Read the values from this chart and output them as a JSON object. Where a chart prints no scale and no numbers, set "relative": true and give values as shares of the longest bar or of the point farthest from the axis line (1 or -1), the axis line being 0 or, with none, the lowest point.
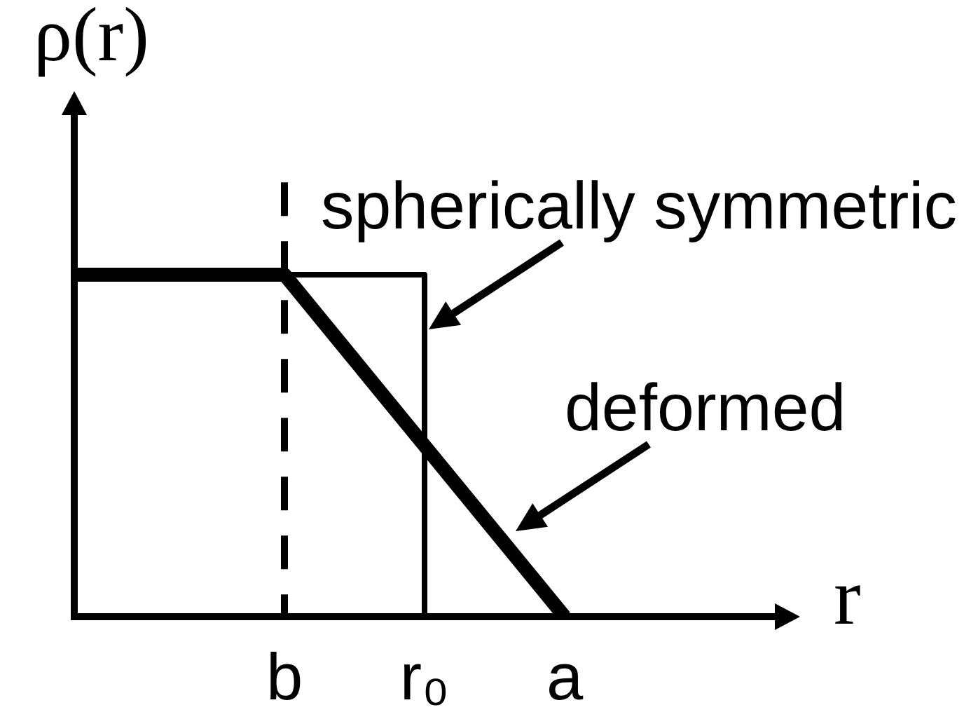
{
  "chart_data": {
    "type": "line",
    "ylabel": "ρ(r)",
    "xlabel": "r",
    "categories": [
      null,
      null,
      null,
      "b",
      null,
      "r₀",
      null,
      "a",
      null,
      null,
      null
    ],
    "relative": true,
    "series": [
      {
        "name": "spherically symmetric",
        "type": "step",
        "color": "#000000",
        "values": [
          null,
          null,
          null,
          1,
          1,
          0,
          null,
          null,
          null,
          null,
          null
        ]
      },
      {
        "name": "deformed",
        "color": "#000000",
        "values": [
          1,
          1,
          1,
          1,
          0.75,
          0.5,
          0.25,
          0,
          null,
          null,
          null
        ]
      }
    ],
    "ref_lines": [
      {
        "axis": "x",
        "value": "b",
        "line_style": "dashed",
        "color": "#000000"
      }
    ],
    "legend": false,
    "grid": false,
    "marker": "none",
    "tick_labels": "x"
  }
}
